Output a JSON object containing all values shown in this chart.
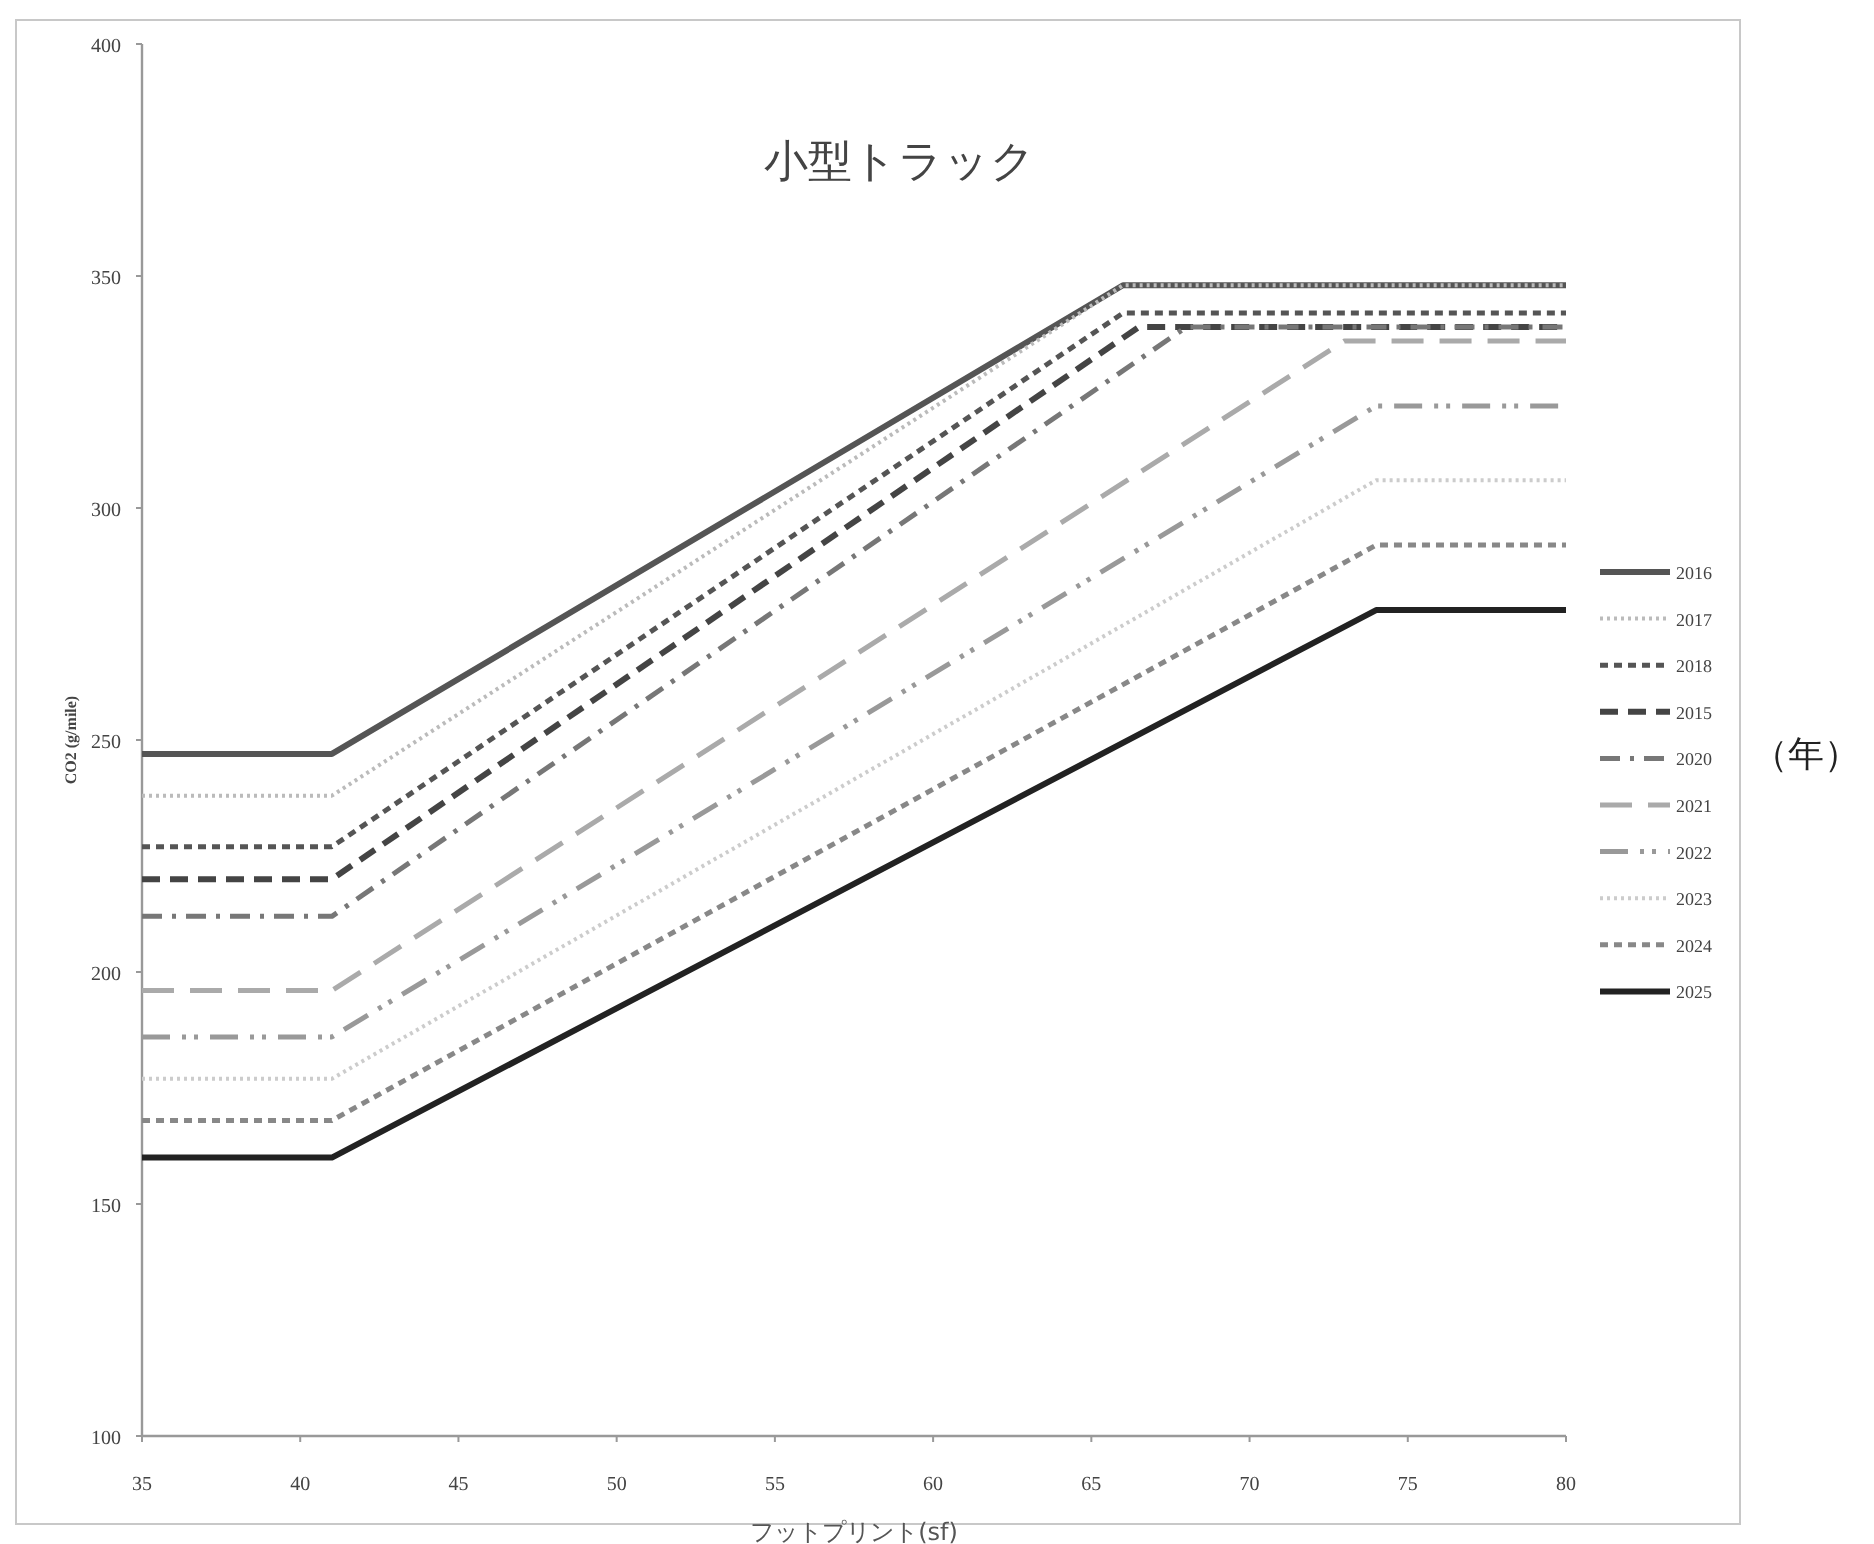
{
  "chart_data": {
    "type": "line",
    "title": "小型トラック",
    "xlabel": "フットプリント(sf)",
    "ylabel": "CO2 (g/mile)",
    "legend_title": "（年）",
    "xlim": [
      35,
      80
    ],
    "ylim": [
      100,
      400
    ],
    "xticks": [
      35,
      40,
      45,
      50,
      55,
      60,
      65,
      70,
      75,
      80
    ],
    "yticks": [
      100,
      150,
      200,
      250,
      300,
      350,
      400
    ],
    "grid": false,
    "legend": "right",
    "marker": "none",
    "series": [
      {
        "name": "2016",
        "color": "#555555",
        "line_style": "solid",
        "x": [
          35,
          41,
          66,
          80
        ],
        "values": [
          247,
          247,
          348,
          348
        ]
      },
      {
        "name": "2017",
        "color": "#bbbbbb",
        "line_style": "dotted",
        "x": [
          35,
          41,
          66,
          80
        ],
        "values": [
          238,
          238,
          348,
          348
        ]
      },
      {
        "name": "2018",
        "color": "#555555",
        "line_style": "shortdash",
        "x": [
          35,
          41,
          66,
          80
        ],
        "values": [
          227,
          227,
          342,
          342
        ]
      },
      {
        "name": "2015",
        "color": "#444444",
        "line_style": "dashed",
        "x": [
          35,
          41,
          66.5,
          80
        ],
        "values": [
          220,
          220,
          339,
          339
        ]
      },
      {
        "name": "2020",
        "color": "#777777",
        "line_style": "dashdot",
        "x": [
          35,
          41,
          68,
          80
        ],
        "values": [
          212,
          212,
          339,
          339
        ]
      },
      {
        "name": "2021",
        "color": "#aaaaaa",
        "line_style": "longdash",
        "x": [
          35,
          41,
          73,
          80
        ],
        "values": [
          196,
          196,
          336,
          336
        ]
      },
      {
        "name": "2022",
        "color": "#999999",
        "line_style": "dashdotdot",
        "x": [
          35,
          41,
          74,
          80
        ],
        "values": [
          186,
          186,
          322,
          322
        ]
      },
      {
        "name": "2023",
        "color": "#cccccc",
        "line_style": "dotted",
        "x": [
          35,
          41,
          74,
          80
        ],
        "values": [
          177,
          177,
          306,
          306
        ]
      },
      {
        "name": "2024",
        "color": "#888888",
        "line_style": "shortdash",
        "x": [
          35,
          41,
          74,
          80
        ],
        "values": [
          168,
          168,
          292,
          292
        ]
      },
      {
        "name": "2025",
        "color": "#222222",
        "line_style": "solid",
        "x": [
          35,
          41,
          74,
          80
        ],
        "values": [
          160,
          160,
          278,
          278
        ]
      }
    ]
  }
}
